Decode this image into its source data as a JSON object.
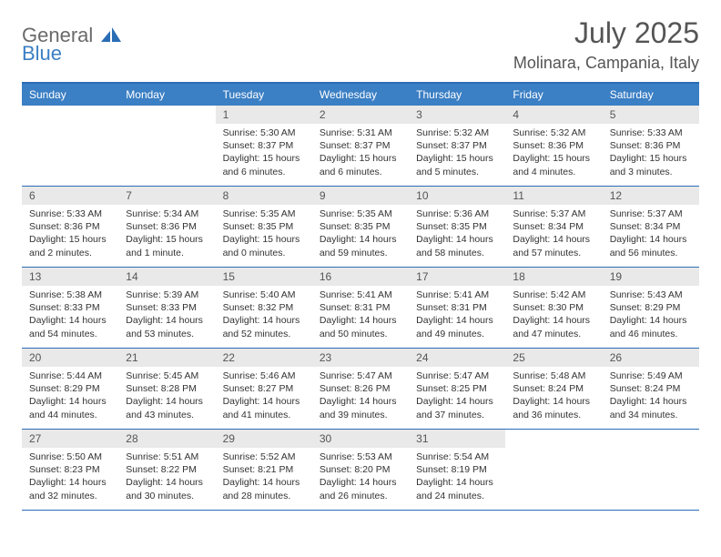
{
  "logo": {
    "part1": "General",
    "part2": "Blue"
  },
  "title": "July 2025",
  "location": "Molinara, Campania, Italy",
  "colors": {
    "header_bg": "#3b7fc4",
    "header_text": "#ffffff",
    "num_bg": "#e9e9e9",
    "border": "#2a6db5",
    "body_text": "#333333",
    "title_text": "#555555"
  },
  "day_names": [
    "Sunday",
    "Monday",
    "Tuesday",
    "Wednesday",
    "Thursday",
    "Friday",
    "Saturday"
  ],
  "weeks": [
    [
      {
        "n": "",
        "sr": "",
        "ss": "",
        "dl": ""
      },
      {
        "n": "",
        "sr": "",
        "ss": "",
        "dl": ""
      },
      {
        "n": "1",
        "sr": "Sunrise: 5:30 AM",
        "ss": "Sunset: 8:37 PM",
        "dl": "Daylight: 15 hours and 6 minutes."
      },
      {
        "n": "2",
        "sr": "Sunrise: 5:31 AM",
        "ss": "Sunset: 8:37 PM",
        "dl": "Daylight: 15 hours and 6 minutes."
      },
      {
        "n": "3",
        "sr": "Sunrise: 5:32 AM",
        "ss": "Sunset: 8:37 PM",
        "dl": "Daylight: 15 hours and 5 minutes."
      },
      {
        "n": "4",
        "sr": "Sunrise: 5:32 AM",
        "ss": "Sunset: 8:36 PM",
        "dl": "Daylight: 15 hours and 4 minutes."
      },
      {
        "n": "5",
        "sr": "Sunrise: 5:33 AM",
        "ss": "Sunset: 8:36 PM",
        "dl": "Daylight: 15 hours and 3 minutes."
      }
    ],
    [
      {
        "n": "6",
        "sr": "Sunrise: 5:33 AM",
        "ss": "Sunset: 8:36 PM",
        "dl": "Daylight: 15 hours and 2 minutes."
      },
      {
        "n": "7",
        "sr": "Sunrise: 5:34 AM",
        "ss": "Sunset: 8:36 PM",
        "dl": "Daylight: 15 hours and 1 minute."
      },
      {
        "n": "8",
        "sr": "Sunrise: 5:35 AM",
        "ss": "Sunset: 8:35 PM",
        "dl": "Daylight: 15 hours and 0 minutes."
      },
      {
        "n": "9",
        "sr": "Sunrise: 5:35 AM",
        "ss": "Sunset: 8:35 PM",
        "dl": "Daylight: 14 hours and 59 minutes."
      },
      {
        "n": "10",
        "sr": "Sunrise: 5:36 AM",
        "ss": "Sunset: 8:35 PM",
        "dl": "Daylight: 14 hours and 58 minutes."
      },
      {
        "n": "11",
        "sr": "Sunrise: 5:37 AM",
        "ss": "Sunset: 8:34 PM",
        "dl": "Daylight: 14 hours and 57 minutes."
      },
      {
        "n": "12",
        "sr": "Sunrise: 5:37 AM",
        "ss": "Sunset: 8:34 PM",
        "dl": "Daylight: 14 hours and 56 minutes."
      }
    ],
    [
      {
        "n": "13",
        "sr": "Sunrise: 5:38 AM",
        "ss": "Sunset: 8:33 PM",
        "dl": "Daylight: 14 hours and 54 minutes."
      },
      {
        "n": "14",
        "sr": "Sunrise: 5:39 AM",
        "ss": "Sunset: 8:33 PM",
        "dl": "Daylight: 14 hours and 53 minutes."
      },
      {
        "n": "15",
        "sr": "Sunrise: 5:40 AM",
        "ss": "Sunset: 8:32 PM",
        "dl": "Daylight: 14 hours and 52 minutes."
      },
      {
        "n": "16",
        "sr": "Sunrise: 5:41 AM",
        "ss": "Sunset: 8:31 PM",
        "dl": "Daylight: 14 hours and 50 minutes."
      },
      {
        "n": "17",
        "sr": "Sunrise: 5:41 AM",
        "ss": "Sunset: 8:31 PM",
        "dl": "Daylight: 14 hours and 49 minutes."
      },
      {
        "n": "18",
        "sr": "Sunrise: 5:42 AM",
        "ss": "Sunset: 8:30 PM",
        "dl": "Daylight: 14 hours and 47 minutes."
      },
      {
        "n": "19",
        "sr": "Sunrise: 5:43 AM",
        "ss": "Sunset: 8:29 PM",
        "dl": "Daylight: 14 hours and 46 minutes."
      }
    ],
    [
      {
        "n": "20",
        "sr": "Sunrise: 5:44 AM",
        "ss": "Sunset: 8:29 PM",
        "dl": "Daylight: 14 hours and 44 minutes."
      },
      {
        "n": "21",
        "sr": "Sunrise: 5:45 AM",
        "ss": "Sunset: 8:28 PM",
        "dl": "Daylight: 14 hours and 43 minutes."
      },
      {
        "n": "22",
        "sr": "Sunrise: 5:46 AM",
        "ss": "Sunset: 8:27 PM",
        "dl": "Daylight: 14 hours and 41 minutes."
      },
      {
        "n": "23",
        "sr": "Sunrise: 5:47 AM",
        "ss": "Sunset: 8:26 PM",
        "dl": "Daylight: 14 hours and 39 minutes."
      },
      {
        "n": "24",
        "sr": "Sunrise: 5:47 AM",
        "ss": "Sunset: 8:25 PM",
        "dl": "Daylight: 14 hours and 37 minutes."
      },
      {
        "n": "25",
        "sr": "Sunrise: 5:48 AM",
        "ss": "Sunset: 8:24 PM",
        "dl": "Daylight: 14 hours and 36 minutes."
      },
      {
        "n": "26",
        "sr": "Sunrise: 5:49 AM",
        "ss": "Sunset: 8:24 PM",
        "dl": "Daylight: 14 hours and 34 minutes."
      }
    ],
    [
      {
        "n": "27",
        "sr": "Sunrise: 5:50 AM",
        "ss": "Sunset: 8:23 PM",
        "dl": "Daylight: 14 hours and 32 minutes."
      },
      {
        "n": "28",
        "sr": "Sunrise: 5:51 AM",
        "ss": "Sunset: 8:22 PM",
        "dl": "Daylight: 14 hours and 30 minutes."
      },
      {
        "n": "29",
        "sr": "Sunrise: 5:52 AM",
        "ss": "Sunset: 8:21 PM",
        "dl": "Daylight: 14 hours and 28 minutes."
      },
      {
        "n": "30",
        "sr": "Sunrise: 5:53 AM",
        "ss": "Sunset: 8:20 PM",
        "dl": "Daylight: 14 hours and 26 minutes."
      },
      {
        "n": "31",
        "sr": "Sunrise: 5:54 AM",
        "ss": "Sunset: 8:19 PM",
        "dl": "Daylight: 14 hours and 24 minutes."
      },
      {
        "n": "",
        "sr": "",
        "ss": "",
        "dl": ""
      },
      {
        "n": "",
        "sr": "",
        "ss": "",
        "dl": ""
      }
    ]
  ]
}
